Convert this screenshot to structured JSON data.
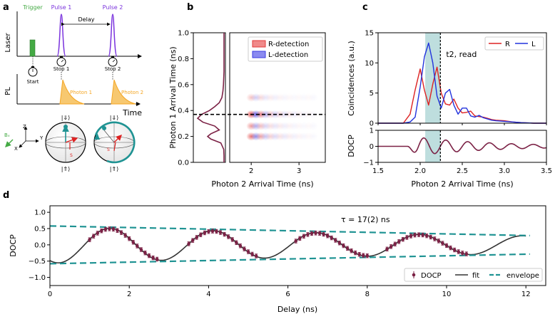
{
  "panels": {
    "a": "a",
    "b": "b",
    "c": "c",
    "d": "d"
  },
  "colors": {
    "trigger": "#44aa44",
    "pulse": "#7a33dd",
    "photon": "#f5a623",
    "teal": "#1f9393",
    "wine": "#7b2145",
    "red": "#dd2222",
    "blue": "#2233dd",
    "window": "#b3d8d8",
    "fit": "#333333"
  },
  "panel_a": {
    "laser_label": "Laser",
    "pl_label": "PL",
    "time_label": "Time",
    "trigger_label": "Trigger",
    "pulse1_label": "Pulse 1",
    "pulse2_label": "Pulse 2",
    "delay_label": "Delay",
    "start_label": "Start",
    "stop1_label": "Stop 1",
    "stop2_label": "Stop 2",
    "photon1_label": "Photon 1",
    "photon2_label": "Photon 2",
    "axis_z": "Z",
    "axis_y": "Y",
    "axis_x": "X",
    "field_label": "Bₓ",
    "top_ket": "|⇓⟩",
    "bottom_ket": "|⇑⟩",
    "spin_label": "S"
  },
  "chart_data": [
    {
      "id": "b-marginal",
      "type": "line",
      "ylabel": "Photon 1 Arrival Time (ns)",
      "ylim": [
        0,
        1.0
      ],
      "yticks": [
        0.0,
        0.2,
        0.4,
        0.6,
        0.8,
        1.0
      ],
      "y": [
        0.0,
        0.05,
        0.1,
        0.15,
        0.18,
        0.2,
        0.22,
        0.25,
        0.28,
        0.31,
        0.34,
        0.37,
        0.4,
        0.43,
        0.46,
        0.5,
        0.55,
        0.6,
        0.65,
        0.7,
        0.8,
        0.9,
        1.0
      ],
      "x": [
        0.0,
        0.0,
        0.01,
        0.12,
        0.5,
        0.62,
        0.5,
        0.18,
        0.35,
        0.8,
        1.0,
        0.85,
        0.55,
        0.35,
        0.18,
        0.08,
        0.04,
        0.02,
        0.01,
        0.0,
        0.0,
        0.0,
        0.0
      ]
    },
    {
      "id": "b-heatmap",
      "type": "heatmap",
      "xlabel": "Photon 2 Arrival Time (ns)",
      "xlim": [
        1.55,
        3.55
      ],
      "ylim": [
        0,
        1.0
      ],
      "xticks": [
        2,
        3
      ],
      "legend": [
        "R-detection",
        "L-detection"
      ],
      "legend_position": "top-right",
      "rows": [
        0.2,
        0.28,
        0.37,
        0.5
      ],
      "row_weights": [
        0.7,
        0.5,
        1.0,
        0.3
      ],
      "read_time": 0.37
    },
    {
      "id": "c-coincidences",
      "type": "line",
      "ylabel": "Coincidences (a.u.)",
      "xlim": [
        1.5,
        3.5
      ],
      "ylim": [
        0,
        15
      ],
      "yticks": [
        0,
        5,
        10,
        15
      ],
      "x": [
        1.5,
        1.8,
        1.88,
        1.94,
        2.0,
        2.05,
        2.1,
        2.15,
        2.2,
        2.25,
        2.3,
        2.35,
        2.4,
        2.45,
        2.5,
        2.55,
        2.6,
        2.65,
        2.7,
        2.75,
        2.8,
        2.85,
        2.9,
        3.0,
        3.1,
        3.2,
        3.35,
        3.5
      ],
      "series": [
        {
          "name": "R",
          "values": [
            0,
            0,
            1.5,
            5.5,
            9.0,
            5.5,
            3.0,
            6.5,
            9.3,
            5.0,
            3.2,
            3.0,
            4.0,
            2.5,
            1.7,
            1.8,
            2.0,
            1.2,
            1.1,
            1.0,
            0.8,
            0.6,
            0.5,
            0.4,
            0.2,
            0.1,
            0,
            0
          ]
        },
        {
          "name": "L",
          "values": [
            0,
            0,
            0.2,
            1.0,
            6.0,
            11.0,
            13.3,
            10.0,
            4.5,
            2.5,
            5.0,
            5.6,
            3.0,
            1.5,
            2.5,
            2.5,
            1.2,
            1.0,
            1.3,
            0.9,
            0.7,
            0.5,
            0.4,
            0.3,
            0.2,
            0.1,
            0,
            0
          ]
        }
      ],
      "legend_position": "top-right",
      "read_label": "t2, read",
      "read_time": 2.24,
      "window": [
        2.06,
        2.24
      ]
    },
    {
      "id": "c-docp",
      "type": "line",
      "xlabel": "Photon 2 Arrival Time (ns)",
      "ylabel": "DOCP",
      "xlim": [
        1.5,
        3.5
      ],
      "ylim": [
        -1,
        1
      ],
      "xticks": [
        1.5,
        2.0,
        2.5,
        3.0,
        3.5
      ],
      "yticks": [
        -1,
        0,
        1
      ],
      "onset": 1.85,
      "period": 0.26,
      "decay": 0.9,
      "amplitude": 0.65
    },
    {
      "id": "d-docp-delay",
      "type": "scatter",
      "xlabel": "Delay (ns)",
      "ylabel": "DOCP",
      "xlim": [
        0,
        12.5
      ],
      "ylim": [
        -1.25,
        1.2
      ],
      "xticks": [
        0,
        2,
        4,
        6,
        8,
        10,
        12
      ],
      "yticks": [
        -1.0,
        -0.5,
        0.0,
        0.5,
        1.0
      ],
      "annotation": "τ = 17(2) ns",
      "legend": [
        "DOCP",
        "fit",
        "envelope"
      ],
      "legend_position": "bottom-right",
      "fit": {
        "period": 2.6,
        "phase": -2.1,
        "amp0": 0.56,
        "tau": 17.0,
        "xmax": 12
      },
      "envelope": {
        "amp0": 0.58,
        "tau": 17.0,
        "xmax": 12.1
      },
      "data_ranges": [
        [
          1.0,
          2.7
        ],
        [
          3.5,
          5.2
        ],
        [
          6.2,
          8.0
        ],
        [
          8.5,
          10.5
        ]
      ],
      "data_step": 0.1
    }
  ]
}
